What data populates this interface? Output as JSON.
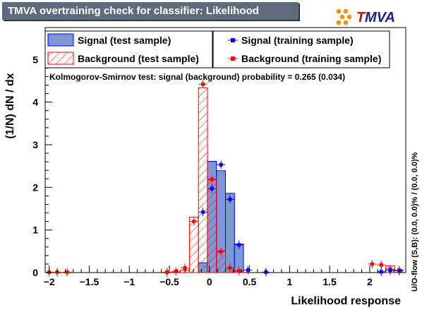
{
  "header": {
    "title": "TMVA overtraining check for classifier: Likelihood"
  },
  "logo": {
    "text_t": "T",
    "text_mva": "MVA",
    "t_color": "#cc1100",
    "mva_color": "#1a237e",
    "dot_color": "#f29400"
  },
  "side_note": "U/O-flow (S,B): (0.0, 0.0)% / (0.0, 0.0)%",
  "ks_text": "Kolmogorov-Smirnov test: signal (background) probability = 0.265 (0.034)",
  "legend": {
    "signal_test": "Signal (test sample)",
    "signal_train": "Signal (training sample)",
    "background_test": "Background (test sample)",
    "background_train": "Background (training sample)"
  },
  "colors": {
    "signal_fill": "#7d99d1",
    "signal_line": "#0000ee",
    "background": "#ff0000"
  },
  "chart_data": {
    "type": "bar",
    "xlabel": "Likelihood response",
    "ylabel": "(1/N) dN / dx",
    "xlim": [
      -2.05,
      2.45
    ],
    "ylim": [
      0,
      5.75
    ],
    "x_ticks": [
      "−2",
      "−1.5",
      "−1",
      "−0.5",
      "0",
      "0.5",
      "1",
      "1.5",
      "2"
    ],
    "x_tick_values": [
      -2,
      -1.5,
      -1,
      -0.5,
      0,
      0.5,
      1,
      1.5,
      2
    ],
    "y_ticks": [
      "0",
      "1",
      "2",
      "3",
      "4",
      "5"
    ],
    "y_tick_values": [
      0,
      1,
      2,
      3,
      4,
      5
    ],
    "bin_width": 0.1125,
    "series": [
      {
        "name": "Signal (test sample)",
        "kind": "hist",
        "x0": [
          -0.1375,
          -0.025,
          0.0875,
          0.2,
          0.3125
        ],
        "values": [
          0.23,
          2.61,
          2.39,
          1.86,
          0.67
        ]
      },
      {
        "name": "Background (test sample)",
        "kind": "hist",
        "x0": [
          -0.475,
          -0.3625,
          -0.25,
          -0.1375,
          -0.025,
          0.0875,
          0.2,
          0.3125,
          2.2
        ],
        "values": [
          0.01,
          0.06,
          1.3,
          4.34,
          2.18,
          0.51,
          0.1,
          0.03,
          0.16
        ]
      },
      {
        "name": "Signal (training sample)",
        "kind": "points",
        "x": [
          -0.081,
          0.031,
          0.144,
          0.256,
          0.369,
          0.481,
          0.706,
          2.144,
          2.256,
          2.369
        ],
        "y": [
          1.42,
          1.97,
          2.53,
          1.72,
          0.65,
          0.06,
          0.01,
          0.02,
          0.05,
          0.04
        ]
      },
      {
        "name": "Background (training sample)",
        "kind": "points",
        "x": [
          -2.0,
          -1.9,
          -1.775,
          -0.531,
          -0.419,
          -0.306,
          -0.194,
          -0.081,
          0.031,
          0.144,
          0.256,
          0.369,
          2.031,
          2.144,
          2.256,
          2.369
        ],
        "y": [
          0.01,
          0.01,
          0.01,
          0.01,
          0.03,
          0.11,
          1.2,
          4.42,
          2.19,
          0.49,
          0.11,
          0.04,
          0.2,
          0.18,
          0.08,
          0.06
        ]
      }
    ]
  }
}
